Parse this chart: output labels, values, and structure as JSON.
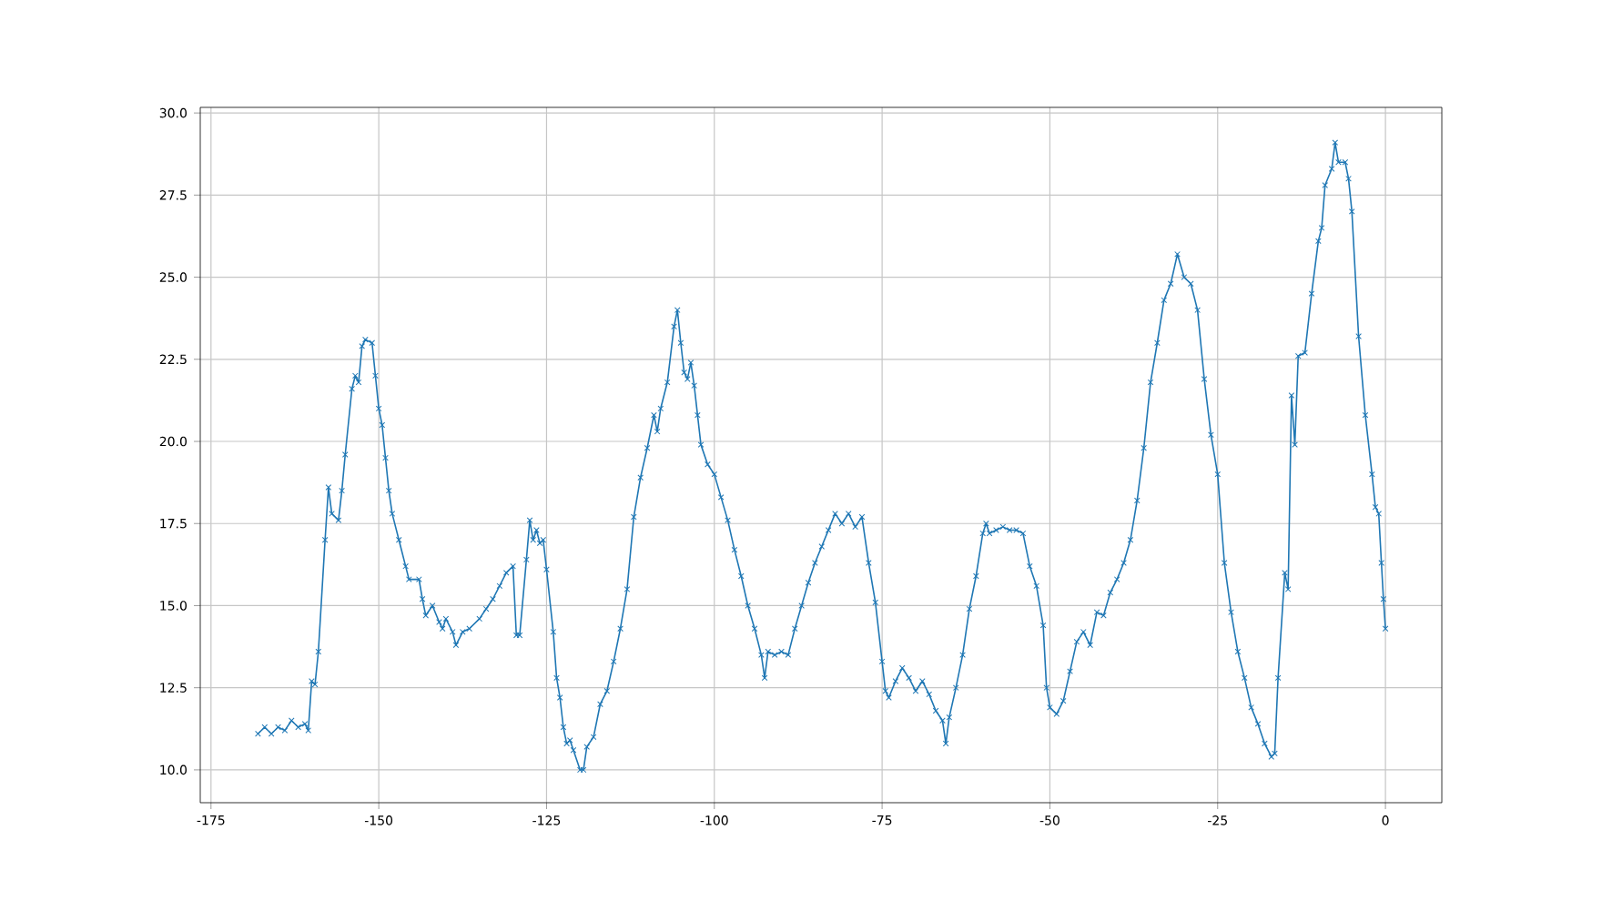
{
  "chart_data": {
    "type": "line",
    "color": "#1f77b4",
    "marker": "cross",
    "line_style": "solid",
    "grid": true,
    "x": [
      -168,
      -167,
      -166,
      -165,
      -164,
      -163,
      -162,
      -161,
      -160.5,
      -160,
      -159.5,
      -159,
      -158,
      -157.5,
      -157,
      -156,
      -155.5,
      -155,
      -154,
      -153.5,
      -153,
      -152.5,
      -152,
      -151,
      -150.5,
      -150,
      -149.5,
      -149,
      -148.5,
      -148,
      -147,
      -146,
      -145.5,
      -144,
      -143.5,
      -143,
      -142,
      -141,
      -140.5,
      -140,
      -139,
      -138.5,
      -137.5,
      -136.5,
      -135,
      -134,
      -133,
      -132,
      -131,
      -130,
      -129.5,
      -129,
      -128,
      -127.5,
      -127,
      -126.5,
      -126,
      -125.5,
      -125,
      -124,
      -123.5,
      -123,
      -122.5,
      -122,
      -121.5,
      -121,
      -120,
      -119.5,
      -119,
      -118,
      -117,
      -116,
      -115,
      -114,
      -113,
      -112,
      -111,
      -110,
      -109,
      -108.5,
      -108,
      -107,
      -106,
      -105.5,
      -105,
      -104.5,
      -104,
      -103.5,
      -103,
      -102.5,
      -102,
      -101,
      -100,
      -99,
      -98,
      -97,
      -96,
      -95,
      -94,
      -93,
      -92.5,
      -92,
      -91,
      -90,
      -89,
      -88,
      -87,
      -86,
      -85,
      -84,
      -83,
      -82,
      -81,
      -80,
      -79,
      -78,
      -77,
      -76,
      -75,
      -74.5,
      -74,
      -73,
      -72,
      -71,
      -70,
      -69,
      -68,
      -67,
      -66,
      -65.5,
      -65,
      -64,
      -63,
      -62,
      -61,
      -60,
      -59.5,
      -59,
      -58,
      -57,
      -56,
      -55,
      -54,
      -53,
      -52,
      -51,
      -50.5,
      -50,
      -49,
      -48,
      -47,
      -46,
      -45,
      -44,
      -43,
      -42,
      -41,
      -40,
      -39,
      -38,
      -37,
      -36,
      -35,
      -34,
      -33,
      -32,
      -31,
      -30,
      -29,
      -28,
      -27,
      -26,
      -25,
      -24,
      -23,
      -22,
      -21,
      -20,
      -19,
      -18,
      -17,
      -16.5,
      -16,
      -15,
      -14.5,
      -14,
      -13.5,
      -13,
      -12,
      -11,
      -10,
      -9.5,
      -9,
      -8,
      -7.5,
      -7,
      -6,
      -5.5,
      -5,
      -4,
      -3,
      -2,
      -1.5,
      -1,
      -0.6,
      -0.3,
      0
    ],
    "values": [
      11.1,
      11.3,
      11.1,
      11.3,
      11.2,
      11.5,
      11.3,
      11.4,
      11.2,
      12.7,
      12.6,
      13.6,
      17.0,
      18.6,
      17.8,
      17.6,
      18.5,
      19.6,
      21.6,
      22.0,
      21.8,
      22.9,
      23.1,
      23.0,
      22.0,
      21.0,
      20.5,
      19.5,
      18.5,
      17.8,
      17.0,
      16.2,
      15.8,
      15.8,
      15.2,
      14.7,
      15.0,
      14.5,
      14.3,
      14.6,
      14.2,
      13.8,
      14.2,
      14.3,
      14.6,
      14.9,
      15.2,
      15.6,
      16.0,
      16.2,
      14.1,
      14.1,
      16.4,
      17.6,
      17.0,
      17.3,
      16.9,
      17.0,
      16.1,
      14.2,
      12.8,
      12.2,
      11.3,
      10.8,
      10.9,
      10.6,
      10.0,
      10.0,
      10.7,
      11.0,
      12.0,
      12.4,
      13.3,
      14.3,
      15.5,
      17.7,
      18.9,
      19.8,
      20.8,
      20.3,
      21.0,
      21.8,
      23.5,
      24.0,
      23.0,
      22.1,
      21.9,
      22.4,
      21.7,
      20.8,
      19.9,
      19.3,
      19.0,
      18.3,
      17.6,
      16.7,
      15.9,
      15.0,
      14.3,
      13.5,
      12.8,
      13.6,
      13.5,
      13.6,
      13.5,
      14.3,
      15.0,
      15.7,
      16.3,
      16.8,
      17.3,
      17.8,
      17.5,
      17.8,
      17.4,
      17.7,
      16.3,
      15.1,
      13.3,
      12.4,
      12.2,
      12.7,
      13.1,
      12.8,
      12.4,
      12.7,
      12.3,
      11.8,
      11.5,
      10.8,
      11.6,
      12.5,
      13.5,
      14.9,
      15.9,
      17.2,
      17.5,
      17.2,
      17.3,
      17.4,
      17.3,
      17.3,
      17.2,
      16.2,
      15.6,
      14.4,
      12.5,
      11.9,
      11.7,
      12.1,
      13.0,
      13.9,
      14.2,
      13.8,
      14.8,
      14.7,
      15.4,
      15.8,
      16.3,
      17.0,
      18.2,
      19.8,
      21.8,
      23.0,
      24.3,
      24.8,
      25.7,
      25.0,
      24.8,
      24.0,
      21.9,
      20.2,
      19.0,
      16.3,
      14.8,
      13.6,
      12.8,
      11.9,
      11.4,
      10.8,
      10.4,
      10.5,
      12.8,
      16.0,
      15.5,
      21.4,
      19.9,
      22.6,
      22.7,
      24.5,
      26.1,
      26.5,
      27.8,
      28.3,
      29.1,
      28.5,
      28.5,
      28.0,
      27.0,
      23.2,
      20.8,
      19.0,
      18.0,
      17.8,
      16.3,
      15.2,
      14.3
    ],
    "xlim": [
      -176.6,
      8.4
    ],
    "ylim": [
      9.0,
      30.17
    ],
    "xticks": [
      -175,
      -150,
      -125,
      -100,
      -75,
      -50,
      -25,
      0
    ],
    "yticks": [
      {
        "value": 10,
        "label": "10.0"
      },
      {
        "value": 12.5,
        "label": "12.5"
      },
      {
        "value": 15,
        "label": "15.0"
      },
      {
        "value": 17.5,
        "label": "17.5"
      },
      {
        "value": 20,
        "label": "20.0"
      },
      {
        "value": 22.5,
        "label": "22.5"
      },
      {
        "value": 25,
        "label": "25.0"
      },
      {
        "value": 27.5,
        "label": "27.5"
      },
      {
        "value": 30,
        "label": "30.0"
      }
    ]
  }
}
